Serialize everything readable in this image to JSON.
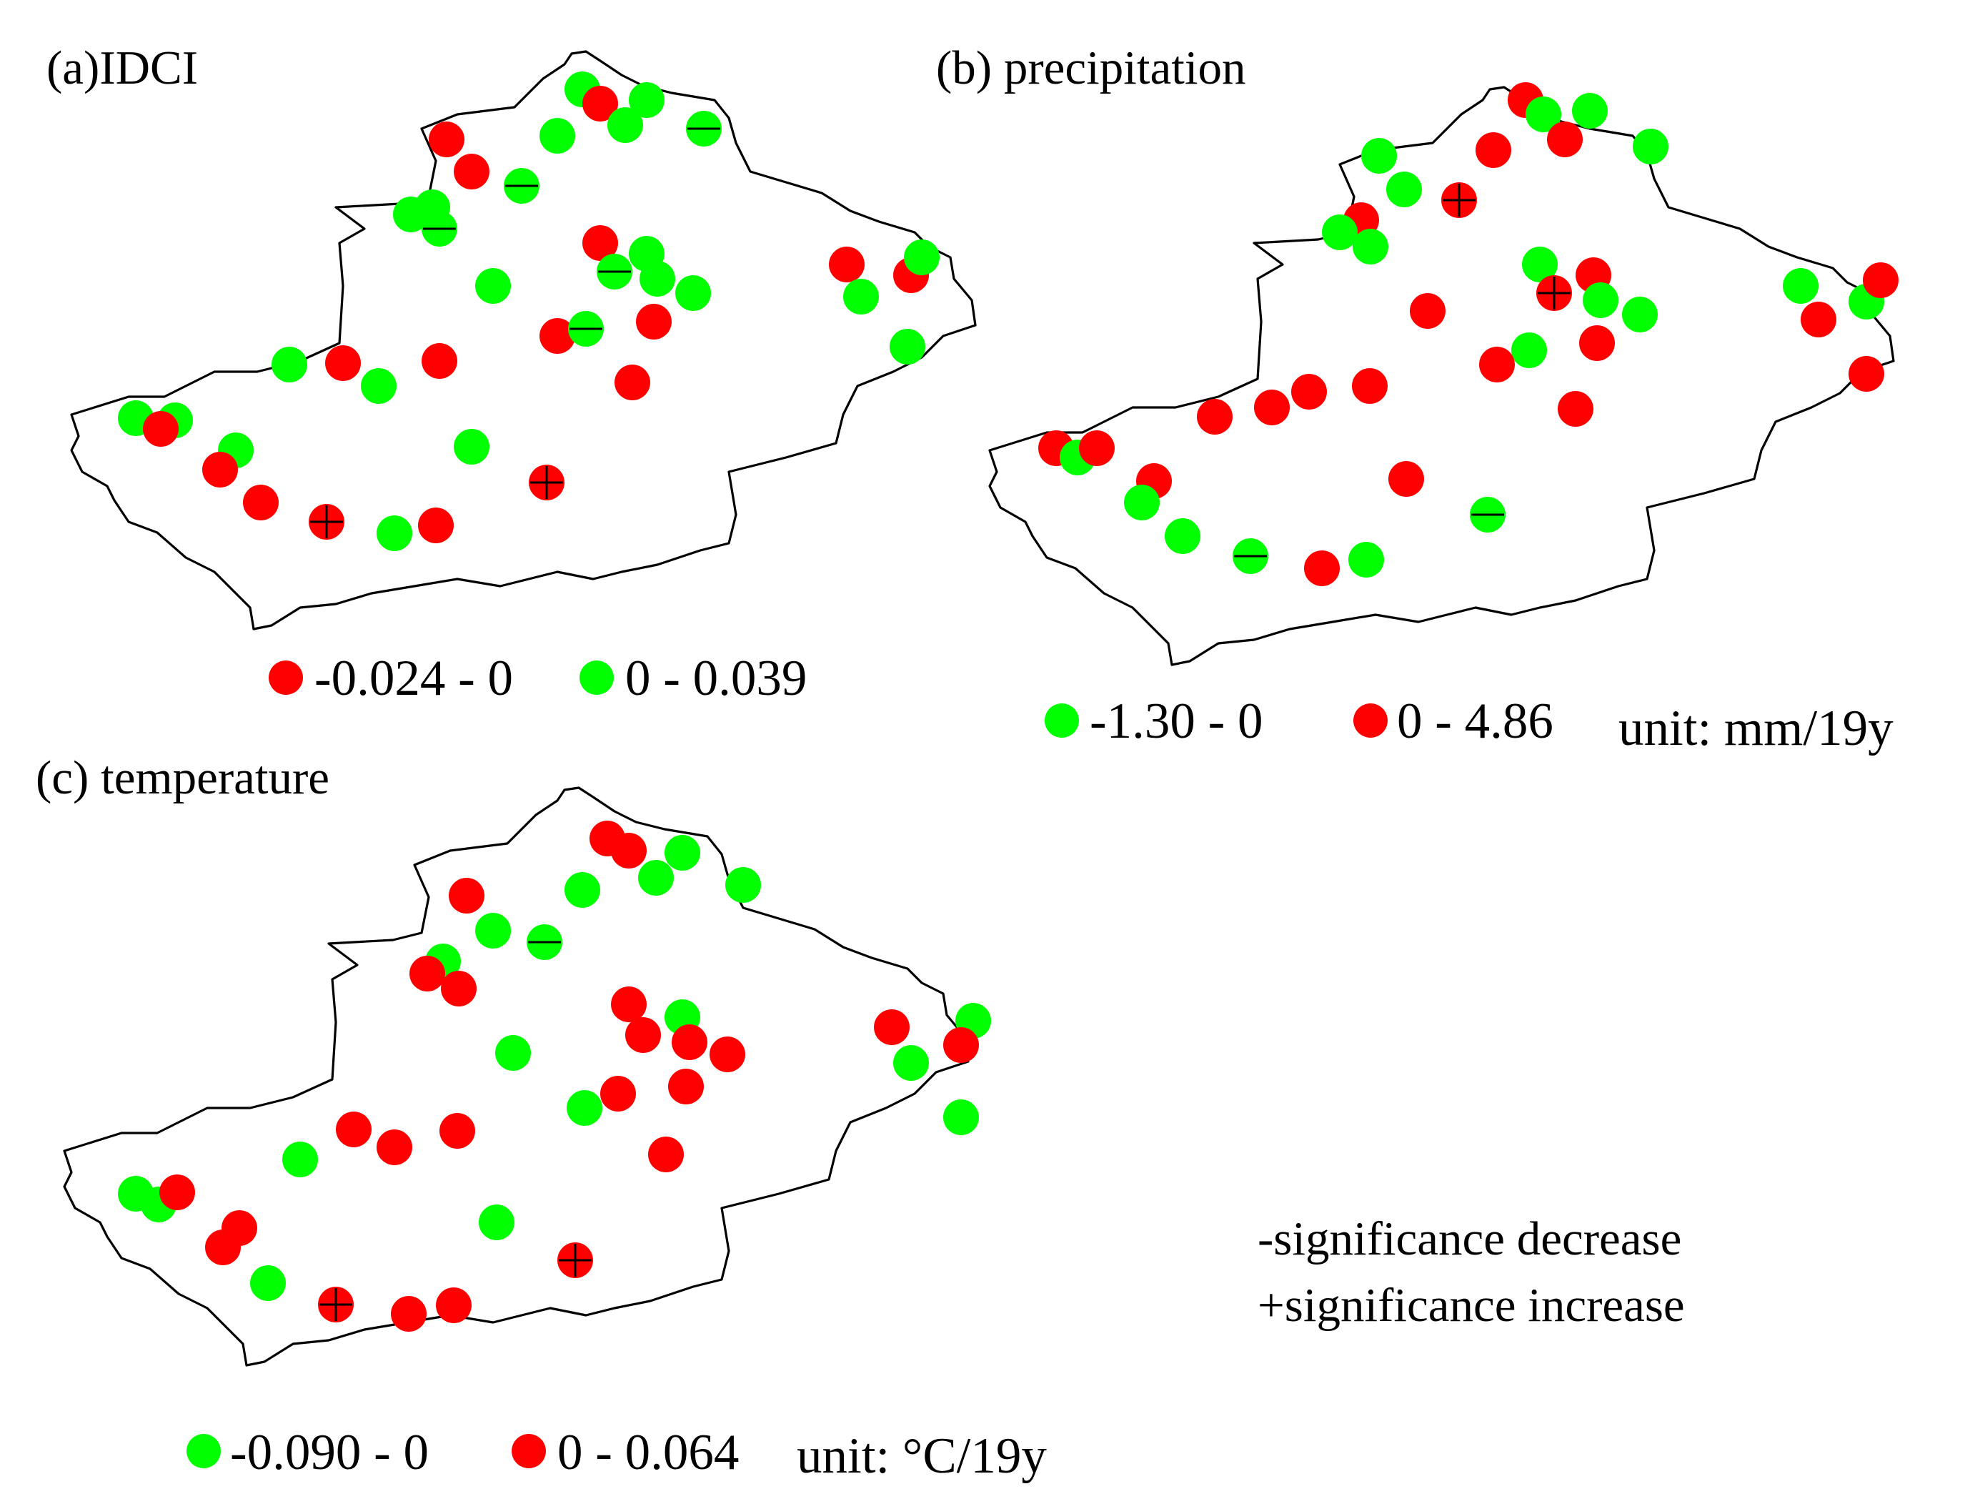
{
  "colors": {
    "negative": "#ff0000",
    "positive": "#00ff00",
    "outline": "#000000"
  },
  "panels": [
    {
      "id": "a",
      "title": "(a)IDCI",
      "legend": [
        {
          "color": "#ff0000",
          "label": "-0.024 - 0"
        },
        {
          "color": "#00ff00",
          "label": "0 - 0.039"
        }
      ],
      "unit": ""
    },
    {
      "id": "b",
      "title": "(b) precipitation",
      "legend": [
        {
          "color": "#00ff00",
          "label": "-1.30 - 0"
        },
        {
          "color": "#ff0000",
          "label": "0 - 4.86"
        }
      ],
      "unit": "unit: mm/19y"
    },
    {
      "id": "c",
      "title": "(c) temperature",
      "legend": [
        {
          "color": "#00ff00",
          "label": "-0.090 - 0"
        },
        {
          "color": "#ff0000",
          "label": "0 - 0.064"
        }
      ],
      "unit": "unit: °C/19y"
    }
  ],
  "notes": {
    "decrease": "-significance decrease",
    "increase": "+significance increase"
  }
}
